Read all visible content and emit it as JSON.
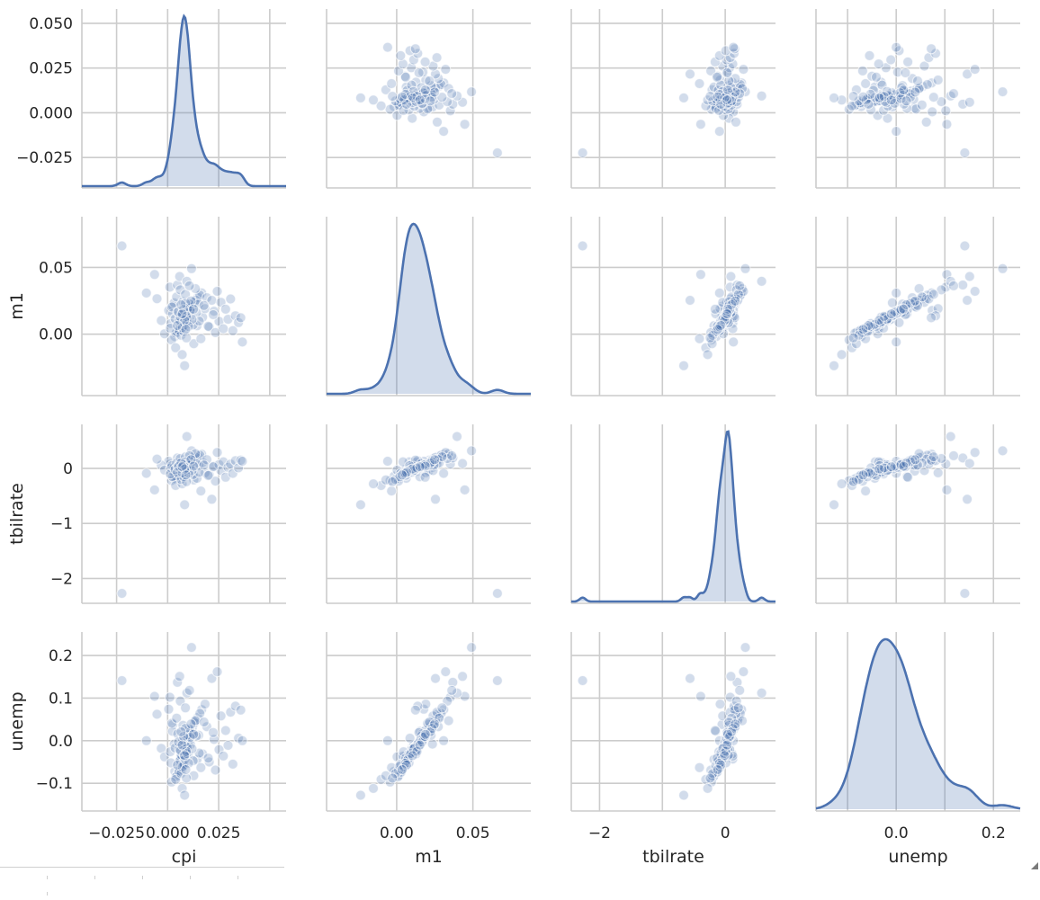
{
  "chart_data": {
    "type": "scatter",
    "kind": "pairplot",
    "variables": [
      "cpi",
      "m1",
      "tbilrate",
      "unemp"
    ],
    "color": "#4c72b0",
    "grid": true,
    "diagonal": "kde",
    "row_labels": [
      "",
      "m1",
      "tbilrate",
      "unemp"
    ],
    "col_labels": [
      "cpi",
      "m1",
      "tbilrate",
      "unemp"
    ],
    "ranges": {
      "cpi": [
        -0.042,
        0.058
      ],
      "m1": [
        -0.046,
        0.088
      ],
      "tbilrate": [
        -2.45,
        0.8
      ],
      "unemp": [
        -0.165,
        0.255
      ]
    },
    "ticks": {
      "cpi": [
        -0.025,
        0.0,
        0.025,
        0.05
      ],
      "m1": [
        0.0,
        0.05
      ],
      "tbilrate": [
        -2,
        -1,
        0
      ],
      "unemp": [
        -0.1,
        0.0,
        0.1,
        0.2
      ]
    },
    "tick_labels": {
      "cpi": [
        "−0.025",
        "0.000",
        "0.025",
        "0.050"
      ],
      "m1": [
        "0.00",
        "0.05"
      ],
      "tbilrate": [
        "−2",
        "−1",
        "0"
      ],
      "unemp": [
        "−0.1",
        "0.0",
        "0.1",
        "0.2"
      ]
    },
    "x_tick_labels": {
      "cpi": [
        "−0.025",
        "0.000",
        "0.025"
      ],
      "m1": [
        "0.00",
        "0.05"
      ],
      "tbilrate": [
        "−2",
        "0"
      ],
      "unemp": [
        "0.0",
        "0.2"
      ]
    },
    "x_ticks": {
      "cpi": [
        -0.025,
        0.0,
        0.025
      ],
      "m1": [
        0.0,
        0.05
      ],
      "tbilrate": [
        -2,
        0
      ],
      "unemp": [
        0.0,
        0.2
      ]
    },
    "observations": [
      {
        "cpi": -0.0224,
        "m1": 0.0661,
        "tbilrate": -2.27,
        "unemp": 0.141
      },
      {
        "cpi": 0.0063,
        "m1": 0.0082,
        "tbilrate": 0.12,
        "unemp": -0.043
      },
      {
        "cpi": 0.0088,
        "m1": 0.0131,
        "tbilrate": -0.05,
        "unemp": -0.021
      },
      {
        "cpi": 0.0104,
        "m1": 0.0187,
        "tbilrate": 0.03,
        "unemp": 0.012
      },
      {
        "cpi": 0.0052,
        "m1": 0.0025,
        "tbilrate": -0.09,
        "unemp": -0.061
      },
      {
        "cpi": 0.0077,
        "m1": 0.0101,
        "tbilrate": 0.07,
        "unemp": -0.015
      },
      {
        "cpi": 0.0121,
        "m1": 0.0214,
        "tbilrate": 0.15,
        "unemp": 0.031
      },
      {
        "cpi": 0.0069,
        "m1": 0.0055,
        "tbilrate": -0.02,
        "unemp": -0.037
      },
      {
        "cpi": 0.0093,
        "m1": 0.0163,
        "tbilrate": 0.09,
        "unemp": 0.004
      },
      {
        "cpi": 0.0035,
        "m1": -0.0017,
        "tbilrate": -0.14,
        "unemp": -0.072
      },
      {
        "cpi": 0.0082,
        "m1": 0.0124,
        "tbilrate": 0.01,
        "unemp": -0.028
      },
      {
        "cpi": 0.0148,
        "m1": 0.0276,
        "tbilrate": 0.22,
        "unemp": 0.055
      },
      {
        "cpi": 0.0058,
        "m1": 0.0073,
        "tbilrate": -0.06,
        "unemp": -0.049
      },
      {
        "cpi": 0.0099,
        "m1": 0.0149,
        "tbilrate": 0.05,
        "unemp": -0.008
      },
      {
        "cpi": 0.0072,
        "m1": 0.0039,
        "tbilrate": -0.11,
        "unemp": -0.066
      },
      {
        "cpi": 0.0113,
        "m1": 0.0198,
        "tbilrate": 0.11,
        "unemp": 0.019
      },
      {
        "cpi": 0.0046,
        "m1": 0.0016,
        "tbilrate": -0.17,
        "unemp": -0.081
      },
      {
        "cpi": 0.0086,
        "m1": 0.0109,
        "tbilrate": 0.02,
        "unemp": -0.024
      },
      {
        "cpi": 0.0132,
        "m1": 0.0241,
        "tbilrate": 0.18,
        "unemp": 0.042
      },
      {
        "cpi": 0.0065,
        "m1": 0.0088,
        "tbilrate": -0.03,
        "unemp": -0.039
      },
      {
        "cpi": 0.0095,
        "m1": 0.0172,
        "tbilrate": 0.08,
        "unemp": 0.007
      },
      {
        "cpi": 0.0078,
        "m1": 0.0061,
        "tbilrate": -0.08,
        "unemp": -0.052
      },
      {
        "cpi": 0.0109,
        "m1": 0.0221,
        "tbilrate": 0.13,
        "unemp": 0.025
      },
      {
        "cpi": 0.0054,
        "m1": 0.0033,
        "tbilrate": -0.12,
        "unemp": -0.071
      },
      {
        "cpi": 0.0091,
        "m1": 0.0139,
        "tbilrate": 0.04,
        "unemp": -0.012
      },
      {
        "cpi": 0.0167,
        "m1": 0.0309,
        "tbilrate": 0.26,
        "unemp": 0.073
      },
      {
        "cpi": 0.0061,
        "m1": 0.0078,
        "tbilrate": -0.04,
        "unemp": -0.046
      },
      {
        "cpi": 0.0102,
        "m1": 0.0158,
        "tbilrate": 0.06,
        "unemp": -0.002
      },
      {
        "cpi": 0.0074,
        "m1": 0.0047,
        "tbilrate": -0.1,
        "unemp": -0.058
      },
      {
        "cpi": 0.0118,
        "m1": 0.0205,
        "tbilrate": 0.1,
        "unemp": 0.016
      },
      {
        "cpi": 0.0041,
        "m1": 0.0008,
        "tbilrate": -0.19,
        "unemp": -0.085
      },
      {
        "cpi": 0.0084,
        "m1": 0.0117,
        "tbilrate": 0.0,
        "unemp": -0.026
      },
      {
        "cpi": 0.0138,
        "m1": 0.0255,
        "tbilrate": 0.2,
        "unemp": 0.048
      },
      {
        "cpi": 0.0067,
        "m1": 0.0094,
        "tbilrate": -0.01,
        "unemp": -0.033
      },
      {
        "cpi": 0.0097,
        "m1": 0.0181,
        "tbilrate": 0.07,
        "unemp": 0.009
      },
      {
        "cpi": 0.008,
        "m1": 0.0067,
        "tbilrate": -0.07,
        "unemp": -0.055
      },
      {
        "cpi": 0.0106,
        "m1": 0.0229,
        "tbilrate": 0.14,
        "unemp": 0.028
      },
      {
        "cpi": 0.0056,
        "m1": 0.0029,
        "tbilrate": -0.13,
        "unemp": -0.074
      },
      {
        "cpi": 0.0089,
        "m1": 0.0144,
        "tbilrate": 0.03,
        "unemp": -0.014
      },
      {
        "cpi": 0.0158,
        "m1": 0.0292,
        "tbilrate": 0.24,
        "unemp": 0.064
      },
      {
        "cpi": 0.0011,
        "m1": 0.0352,
        "tbilrate": 0.08,
        "unemp": 0.102
      },
      {
        "cpi": 0.0005,
        "m1": 0.0178,
        "tbilrate": 0.13,
        "unemp": 0.074
      },
      {
        "cpi": 0.0019,
        "m1": -0.0043,
        "tbilrate": -0.22,
        "unemp": -0.097
      },
      {
        "cpi": 0.0026,
        "m1": 0.0209,
        "tbilrate": -0.05,
        "unemp": 0.038
      },
      {
        "cpi": -0.0031,
        "m1": 0.0102,
        "tbilrate": 0.06,
        "unemp": -0.018
      },
      {
        "cpi": -0.0052,
        "m1": 0.0266,
        "tbilrate": 0.17,
        "unemp": 0.062
      },
      {
        "cpi": -0.0104,
        "m1": 0.0308,
        "tbilrate": -0.09,
        "unemp": 0.0
      },
      {
        "cpi": -0.0064,
        "m1": 0.0447,
        "tbilrate": -0.39,
        "unemp": 0.104
      },
      {
        "cpi": -0.0015,
        "m1": 0.0003,
        "tbilrate": -0.03,
        "unemp": -0.038
      },
      {
        "cpi": 0.0016,
        "m1": 0.0081,
        "tbilrate": 0.01,
        "unemp": -0.052
      },
      {
        "cpi": 0.0024,
        "m1": 0.0152,
        "tbilrate": -0.15,
        "unemp": 0.022
      },
      {
        "cpi": 0.0032,
        "m1": 0.0235,
        "tbilrate": 0.02,
        "unemp": -0.008
      },
      {
        "cpi": 0.0039,
        "m1": -0.0102,
        "tbilrate": -0.31,
        "unemp": -0.091
      },
      {
        "cpi": 0.0048,
        "m1": 0.0368,
        "tbilrate": 0.19,
        "unemp": 0.137
      },
      {
        "cpi": 0.0059,
        "m1": 0.0432,
        "tbilrate": 0.09,
        "unemp": 0.151
      },
      {
        "cpi": 0.0071,
        "m1": -0.0153,
        "tbilrate": -0.28,
        "unemp": -0.112
      },
      {
        "cpi": 0.0083,
        "m1": -0.0236,
        "tbilrate": -0.66,
        "unemp": -0.128
      },
      {
        "cpi": 0.0094,
        "m1": 0.0396,
        "tbilrate": 0.58,
        "unemp": 0.112
      },
      {
        "cpi": 0.0117,
        "m1": 0.0491,
        "tbilrate": 0.32,
        "unemp": 0.219
      },
      {
        "cpi": 0.0128,
        "m1": -0.0071,
        "tbilrate": -0.21,
        "unemp": -0.082
      },
      {
        "cpi": 0.0136,
        "m1": 0.0341,
        "tbilrate": 0.27,
        "unemp": 0.047
      },
      {
        "cpi": 0.0144,
        "m1": 0.0063,
        "tbilrate": -0.18,
        "unemp": -0.044
      },
      {
        "cpi": 0.0152,
        "m1": 0.0226,
        "tbilrate": 0.05,
        "unemp": 0.013
      },
      {
        "cpi": 0.0163,
        "m1": -0.0034,
        "tbilrate": -0.41,
        "unemp": -0.063
      },
      {
        "cpi": 0.0171,
        "m1": 0.0127,
        "tbilrate": 0.11,
        "unemp": -0.031
      },
      {
        "cpi": 0.0183,
        "m1": 0.0191,
        "tbilrate": -0.08,
        "unemp": 0.086
      },
      {
        "cpi": 0.0192,
        "m1": 0.0273,
        "tbilrate": 0.16,
        "unemp": 0.033
      },
      {
        "cpi": 0.0204,
        "m1": 0.0054,
        "tbilrate": -0.12,
        "unemp": -0.05
      },
      {
        "cpi": 0.0216,
        "m1": 0.0254,
        "tbilrate": -0.56,
        "unemp": 0.146
      },
      {
        "cpi": 0.0227,
        "m1": 0.0172,
        "tbilrate": 0.04,
        "unemp": 0.003
      },
      {
        "cpi": 0.0234,
        "m1": 0.0012,
        "tbilrate": -0.23,
        "unemp": -0.069
      },
      {
        "cpi": 0.0243,
        "m1": 0.0321,
        "tbilrate": 0.29,
        "unemp": 0.162
      },
      {
        "cpi": 0.0252,
        "m1": 0.0096,
        "tbilrate": 0.07,
        "unemp": -0.021
      },
      {
        "cpi": 0.0261,
        "m1": 0.0239,
        "tbilrate": -0.04,
        "unemp": 0.058
      },
      {
        "cpi": 0.0273,
        "m1": 0.0041,
        "tbilrate": 0.12,
        "unemp": -0.036
      },
      {
        "cpi": 0.0284,
        "m1": 0.0187,
        "tbilrate": -0.16,
        "unemp": 0.024
      },
      {
        "cpi": 0.0296,
        "m1": 0.0112,
        "tbilrate": 0.02,
        "unemp": -0.011
      },
      {
        "cpi": 0.0308,
        "m1": 0.0264,
        "tbilrate": 0.08,
        "unemp": 0.067
      },
      {
        "cpi": 0.0319,
        "m1": 0.0026,
        "tbilrate": -0.09,
        "unemp": -0.055
      },
      {
        "cpi": 0.0332,
        "m1": 0.0138,
        "tbilrate": 0.14,
        "unemp": 0.081
      },
      {
        "cpi": 0.0347,
        "m1": 0.0087,
        "tbilrate": 0.01,
        "unemp": 0.006
      },
      {
        "cpi": 0.0358,
        "m1": 0.0123,
        "tbilrate": 0.15,
        "unemp": 0.072
      },
      {
        "cpi": 0.0366,
        "m1": -0.0059,
        "tbilrate": 0.13,
        "unemp": 0.0
      },
      {
        "cpi": 0.0013,
        "m1": 0.0045,
        "tbilrate": -0.1,
        "unemp": -0.026
      },
      {
        "cpi": 0.0021,
        "m1": 0.0203,
        "tbilrate": 0.05,
        "unemp": 0.041
      },
      {
        "cpi": 0.0037,
        "m1": 0.0116,
        "tbilrate": -0.02,
        "unemp": -0.017
      },
      {
        "cpi": 0.0044,
        "m1": 0.0279,
        "tbilrate": 0.1,
        "unemp": 0.053
      },
      {
        "cpi": 0.0049,
        "m1": 0.0168,
        "tbilrate": 0.03,
        "unemp": 0.016
      },
      {
        "cpi": 0.0062,
        "m1": 0.0332,
        "tbilrate": 0.18,
        "unemp": 0.093
      },
      {
        "cpi": 0.0066,
        "m1": -0.0008,
        "tbilrate": -0.2,
        "unemp": -0.077
      },
      {
        "cpi": 0.0075,
        "m1": 0.0244,
        "tbilrate": 0.06,
        "unemp": 0.036
      },
      {
        "cpi": 0.0079,
        "m1": 0.0021,
        "tbilrate": -0.15,
        "unemp": -0.059
      },
      {
        "cpi": 0.0087,
        "m1": 0.0298,
        "tbilrate": 0.21,
        "unemp": 0.077
      },
      {
        "cpi": 0.0092,
        "m1": -0.0028,
        "tbilrate": -0.24,
        "unemp": -0.088
      },
      {
        "cpi": 0.0101,
        "m1": 0.0079,
        "tbilrate": -0.06,
        "unemp": -0.032
      },
      {
        "cpi": 0.0107,
        "m1": 0.0362,
        "tbilrate": 0.23,
        "unemp": 0.118
      },
      {
        "cpi": 0.0112,
        "m1": 0.0135,
        "tbilrate": 0.0,
        "unemp": -0.009
      },
      {
        "cpi": 0.0125,
        "m1": 0.0069,
        "tbilrate": -0.11,
        "unemp": -0.047
      },
      {
        "cpi": 0.0141,
        "m1": 0.0162,
        "tbilrate": 0.09,
        "unemp": 0.011
      },
      {
        "cpi": 0.0155,
        "m1": 0.0098,
        "tbilrate": -0.07,
        "unemp": -0.029
      },
      {
        "cpi": 0.0178,
        "m1": 0.0215,
        "tbilrate": 0.06,
        "unemp": 0.044
      },
      {
        "cpi": 0.0199,
        "m1": 0.0059,
        "tbilrate": -0.13,
        "unemp": -0.041
      },
      {
        "cpi": 0.0223,
        "m1": 0.0146,
        "tbilrate": 0.03,
        "unemp": 0.019
      },
      {
        "cpi": 0.0057,
        "m1": 0.0106,
        "tbilrate": 0.04,
        "unemp": -0.02
      },
      {
        "cpi": 0.0069,
        "m1": 0.0142,
        "tbilrate": -0.01,
        "unemp": -0.006
      },
      {
        "cpi": 0.0081,
        "m1": 0.0085,
        "tbilrate": 0.05,
        "unemp": -0.034
      },
      {
        "cpi": 0.0096,
        "m1": 0.0119,
        "tbilrate": -0.03,
        "unemp": -0.016
      },
      {
        "cpi": 0.0074,
        "m1": 0.0157,
        "tbilrate": 0.02,
        "unemp": 0.002
      },
      {
        "cpi": 0.0085,
        "m1": 0.0074,
        "tbilrate": -0.05,
        "unemp": -0.044
      },
      {
        "cpi": 0.0098,
        "m1": 0.0193,
        "tbilrate": 0.08,
        "unemp": 0.014
      },
      {
        "cpi": 0.0063,
        "m1": 0.0128,
        "tbilrate": 0.0,
        "unemp": -0.023
      },
      {
        "cpi": 0.0111,
        "m1": 0.0176,
        "tbilrate": 0.06,
        "unemp": 0.008
      },
      {
        "cpi": 0.0072,
        "m1": 0.0049,
        "tbilrate": -0.08,
        "unemp": -0.062
      },
      {
        "cpi": 0.0087,
        "m1": 0.0232,
        "tbilrate": 0.12,
        "unemp": 0.029
      },
      {
        "cpi": 0.0094,
        "m1": 0.0092,
        "tbilrate": -0.02,
        "unemp": -0.03
      },
      {
        "cpi": 0.0053,
        "m1": 0.0167,
        "tbilrate": 0.04,
        "unemp": -0.003
      },
      {
        "cpi": 0.0119,
        "m1": 0.0111,
        "tbilrate": -0.04,
        "unemp": -0.019
      },
      {
        "cpi": 0.0078,
        "m1": 0.0185,
        "tbilrate": 0.07,
        "unemp": 0.01
      },
      {
        "cpi": 0.0103,
        "m1": 0.0058,
        "tbilrate": -0.09,
        "unemp": -0.053
      },
      {
        "cpi": 0.0066,
        "m1": 0.0221,
        "tbilrate": 0.1,
        "unemp": 0.021
      },
      {
        "cpi": 0.0091,
        "m1": 0.0133,
        "tbilrate": 0.01,
        "unemp": -0.025
      },
      {
        "cpi": 0.0083,
        "m1": 0.0105,
        "tbilrate": -0.01,
        "unemp": -0.035
      },
      {
        "cpi": 0.0115,
        "m1": 0.0249,
        "tbilrate": 0.16,
        "unemp": 0.039
      },
      {
        "cpi": 0.0048,
        "m1": 0.0065,
        "tbilrate": -0.07,
        "unemp": -0.057
      },
      {
        "cpi": 0.0127,
        "m1": 0.0188,
        "tbilrate": 0.04,
        "unemp": 0.015
      },
      {
        "cpi": 0.0071,
        "m1": 0.0152,
        "tbilrate": 0.03,
        "unemp": -0.01
      },
      {
        "cpi": 0.0089,
        "m1": 0.0036,
        "tbilrate": -0.12,
        "unemp": -0.068
      }
    ]
  },
  "footer": {
    "tabs": [
      "",
      "",
      "",
      "",
      "",
      ""
    ]
  }
}
